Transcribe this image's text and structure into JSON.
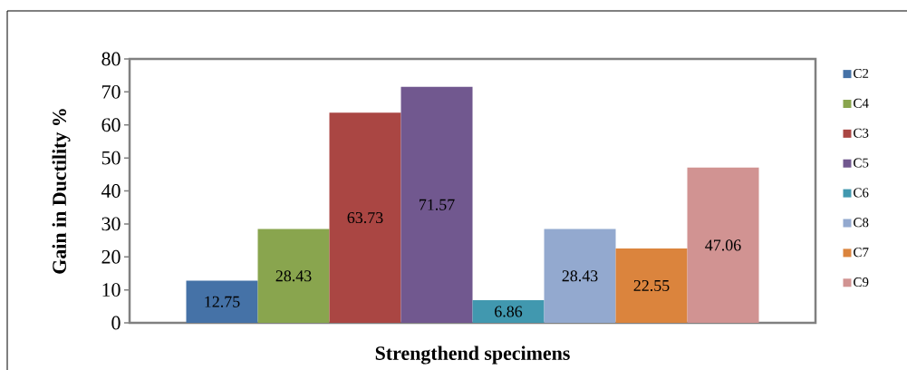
{
  "chart_data": {
    "type": "bar",
    "categories": [
      null
    ],
    "xlabel": "Strengthend specimens",
    "ylabel": "Gain in Ductility %",
    "series": [
      {
        "name": "C2",
        "color": "#4572a7",
        "values": [
          12.75
        ]
      },
      {
        "name": "C4",
        "color": "#89a54e",
        "values": [
          28.43
        ]
      },
      {
        "name": "C3",
        "color": "#aa4643",
        "values": [
          63.73
        ]
      },
      {
        "name": "C5",
        "color": "#71588f",
        "values": [
          71.57
        ]
      },
      {
        "name": "C6",
        "color": "#4198af",
        "values": [
          6.86
        ]
      },
      {
        "name": "C8",
        "color": "#93a9cf",
        "values": [
          28.43
        ]
      },
      {
        "name": "C7",
        "color": "#db843d",
        "values": [
          22.55
        ]
      },
      {
        "name": "C9",
        "color": "#d19392",
        "values": [
          47.06
        ]
      }
    ],
    "ylim": [
      0,
      80
    ],
    "yticks": [
      0,
      10,
      20,
      30,
      40,
      50,
      60,
      70,
      80
    ],
    "data_labels": true,
    "legend": "right"
  }
}
